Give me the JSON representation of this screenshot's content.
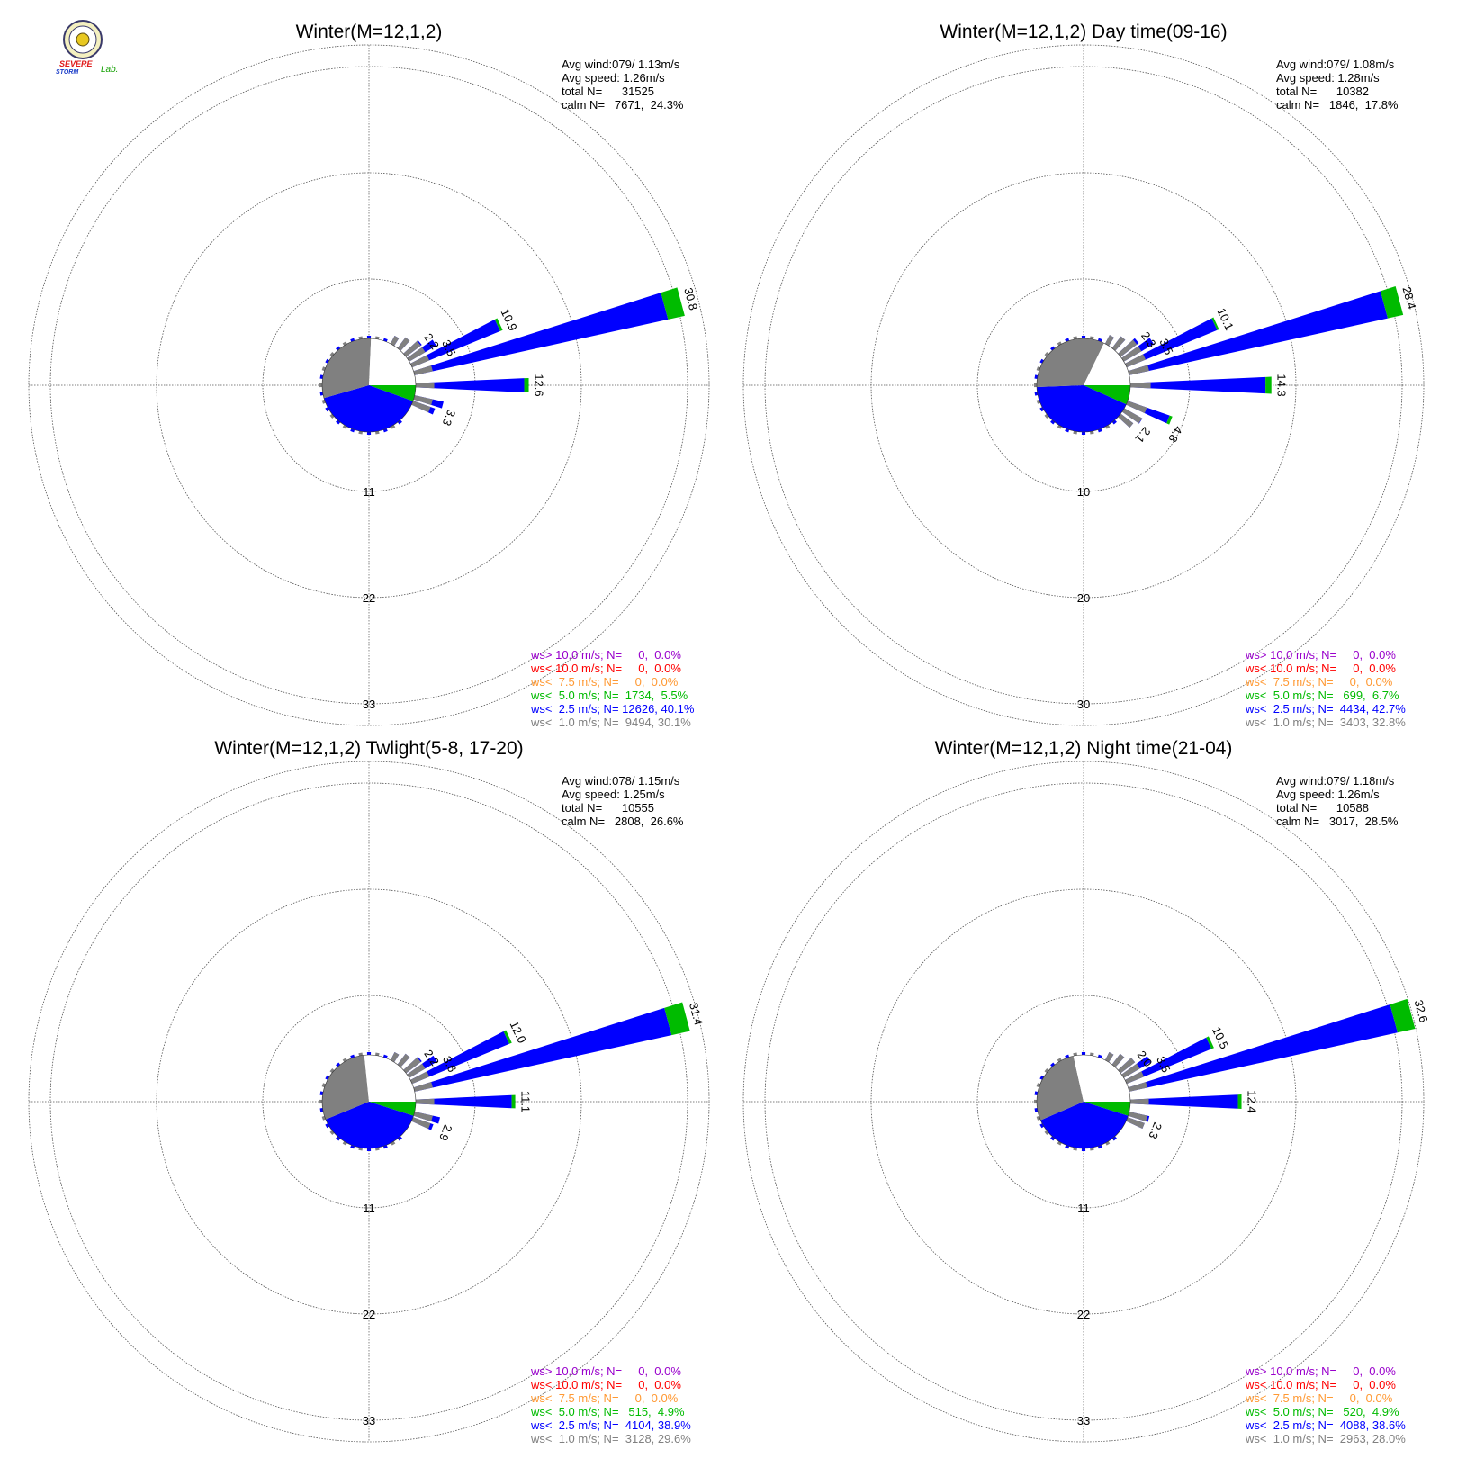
{
  "logo": {
    "word_severe": "SEVERE",
    "word_storm": "STORM",
    "word_lab": "Lab.",
    "colors": {
      "severe": "#e01818",
      "storm": "#1a3cc8",
      "lab": "#12a000",
      "seal_fill": "#f4f0c0",
      "seal_ring": "#3a3a6a"
    }
  },
  "legend_colors": {
    "purple": "#9900cc",
    "red": "#ff0000",
    "orange": "#ff9933",
    "green": "#00bb00",
    "blue": "#0000ff",
    "gray": "#808080",
    "text": "#000000"
  },
  "chart_data": [
    {
      "type": "windrose",
      "title": "Winter(M=12,1,2)",
      "stats": [
        "Avg wind:079/ 1.13m/s",
        "Avg speed: 1.26m/s",
        "total N=      31525",
        "calm N=   7671,  24.3%"
      ],
      "ring_labels": [
        "11",
        "22",
        "33"
      ],
      "r_max": 33,
      "calm_pct": 24.3,
      "sector_pct": {
        "blue": 40.1,
        "green": 5.5,
        "gray": 30.1
      },
      "bar_labels": [
        {
          "text": "2.2",
          "dir": 55,
          "r": 2.2
        },
        {
          "text": "3.5",
          "dir": 65,
          "r": 3.5
        },
        {
          "text": "10.9",
          "dir": 65,
          "r": 10.9
        },
        {
          "text": "30.8",
          "dir": 75,
          "r": 30.8
        },
        {
          "text": "12.6",
          "dir": 90,
          "r": 12.6
        },
        {
          "text": "3.3",
          "dir": 112,
          "r": 3.3
        }
      ],
      "petals": [
        {
          "dir": 75,
          "total": 30.8,
          "green": 1.9
        },
        {
          "dir": 90,
          "total": 12.6,
          "green": 0.5
        },
        {
          "dir": 65,
          "total": 10.9,
          "green": 0.3
        },
        {
          "dir": 57,
          "total": 3.5,
          "green": 0
        },
        {
          "dir": 50,
          "total": 2.2,
          "green": 0
        },
        {
          "dir": 105,
          "total": 3.3,
          "green": 0
        },
        {
          "dir": 112,
          "total": 2.6,
          "green": 0
        },
        {
          "dir": 40,
          "total": 1.5,
          "green": 0
        },
        {
          "dir": 30,
          "total": 1.0,
          "green": 0
        }
      ],
      "legend": [
        {
          "text": "ws> 10.0 m/s; N=     0,  0.0%",
          "color": "purple"
        },
        {
          "text": "ws< 10.0 m/s; N=     0,  0.0%",
          "color": "red"
        },
        {
          "text": "ws<  7.5 m/s; N=     0,  0.0%",
          "color": "orange"
        },
        {
          "text": "ws<  5.0 m/s; N=  1734,  5.5%",
          "color": "green"
        },
        {
          "text": "ws<  2.5 m/s; N= 12626, 40.1%",
          "color": "blue"
        },
        {
          "text": "ws<  1.0 m/s; N=  9494, 30.1%",
          "color": "gray"
        }
      ]
    },
    {
      "type": "windrose",
      "title": "Winter(M=12,1,2) Day time(09-16)",
      "stats": [
        "Avg wind:079/ 1.08m/s",
        "Avg speed: 1.28m/s",
        "total N=      10382",
        "calm N=   1846,  17.8%"
      ],
      "ring_labels": [
        "10",
        "20",
        "30"
      ],
      "r_max": 30,
      "calm_pct": 17.8,
      "sector_pct": {
        "blue": 42.7,
        "green": 6.7,
        "gray": 32.8
      },
      "bar_labels": [
        {
          "text": "2.3",
          "dir": 55,
          "r": 2.3
        },
        {
          "text": "3.5",
          "dir": 65,
          "r": 3.5
        },
        {
          "text": "10.1",
          "dir": 65,
          "r": 10.1
        },
        {
          "text": "28.4",
          "dir": 75,
          "r": 28.4
        },
        {
          "text": "14.3",
          "dir": 90,
          "r": 14.3
        },
        {
          "text": "4.8",
          "dir": 118,
          "r": 4.8
        },
        {
          "text": "2.1",
          "dir": 130,
          "r": 2.1
        }
      ],
      "petals": [
        {
          "dir": 75,
          "total": 28.4,
          "green": 1.6
        },
        {
          "dir": 90,
          "total": 14.3,
          "green": 0.6
        },
        {
          "dir": 65,
          "total": 10.1,
          "green": 0.2
        },
        {
          "dir": 57,
          "total": 3.5,
          "green": 0
        },
        {
          "dir": 50,
          "total": 2.3,
          "green": 0
        },
        {
          "dir": 112,
          "total": 4.8,
          "green": 0.3
        },
        {
          "dir": 122,
          "total": 2.1,
          "green": 0
        },
        {
          "dir": 130,
          "total": 1.6,
          "green": 0
        },
        {
          "dir": 40,
          "total": 1.5,
          "green": 0
        },
        {
          "dir": 30,
          "total": 1.0,
          "green": 0
        }
      ],
      "legend": [
        {
          "text": "ws> 10.0 m/s; N=     0,  0.0%",
          "color": "purple"
        },
        {
          "text": "ws< 10.0 m/s; N=     0,  0.0%",
          "color": "red"
        },
        {
          "text": "ws<  7.5 m/s; N=     0,  0.0%",
          "color": "orange"
        },
        {
          "text": "ws<  5.0 m/s; N=   699,  6.7%",
          "color": "green"
        },
        {
          "text": "ws<  2.5 m/s; N=  4434, 42.7%",
          "color": "blue"
        },
        {
          "text": "ws<  1.0 m/s; N=  3403, 32.8%",
          "color": "gray"
        }
      ]
    },
    {
      "type": "windrose",
      "title": "Winter(M=12,1,2) Twlight(5-8, 17-20)",
      "stats": [
        "Avg wind:078/ 1.15m/s",
        "Avg speed: 1.25m/s",
        "total N=      10555",
        "calm N=   2808,  26.6%"
      ],
      "ring_labels": [
        "11",
        "22",
        "33"
      ],
      "r_max": 33,
      "calm_pct": 26.6,
      "sector_pct": {
        "blue": 38.9,
        "green": 4.9,
        "gray": 29.6
      },
      "bar_labels": [
        {
          "text": "2.2",
          "dir": 55,
          "r": 2.2
        },
        {
          "text": "3.6",
          "dir": 65,
          "r": 3.6
        },
        {
          "text": "12.0",
          "dir": 65,
          "r": 12.0
        },
        {
          "text": "31.4",
          "dir": 75,
          "r": 31.4
        },
        {
          "text": "11.1",
          "dir": 90,
          "r": 11.1
        },
        {
          "text": "2.9",
          "dir": 112,
          "r": 2.9
        }
      ],
      "petals": [
        {
          "dir": 75,
          "total": 31.4,
          "green": 2.1
        },
        {
          "dir": 90,
          "total": 11.1,
          "green": 0.4
        },
        {
          "dir": 65,
          "total": 12.0,
          "green": 0.3
        },
        {
          "dir": 57,
          "total": 3.6,
          "green": 0
        },
        {
          "dir": 50,
          "total": 2.2,
          "green": 0
        },
        {
          "dir": 105,
          "total": 2.9,
          "green": 0
        },
        {
          "dir": 112,
          "total": 2.4,
          "green": 0
        },
        {
          "dir": 40,
          "total": 1.5,
          "green": 0
        },
        {
          "dir": 30,
          "total": 1.0,
          "green": 0
        }
      ],
      "legend": [
        {
          "text": "ws> 10.0 m/s; N=     0,  0.0%",
          "color": "purple"
        },
        {
          "text": "ws< 10.0 m/s; N=     0,  0.0%",
          "color": "red"
        },
        {
          "text": "ws<  7.5 m/s; N=     0,  0.0%",
          "color": "orange"
        },
        {
          "text": "ws<  5.0 m/s; N=   515,  4.9%",
          "color": "green"
        },
        {
          "text": "ws<  2.5 m/s; N=  4104, 38.9%",
          "color": "blue"
        },
        {
          "text": "ws<  1.0 m/s; N=  3128, 29.6%",
          "color": "gray"
        }
      ]
    },
    {
      "type": "windrose",
      "title": "Winter(M=12,1,2) Night time(21-04)",
      "stats": [
        "Avg wind:079/ 1.18m/s",
        "Avg speed: 1.26m/s",
        "total N=      10588",
        "calm N=   3017,  28.5%"
      ],
      "ring_labels": [
        "11",
        "22",
        "33"
      ],
      "r_max": 33,
      "calm_pct": 28.5,
      "sector_pct": {
        "blue": 38.6,
        "green": 4.9,
        "gray": 28.0
      },
      "bar_labels": [
        {
          "text": "2.0",
          "dir": 55,
          "r": 2.0
        },
        {
          "text": "3.5",
          "dir": 65,
          "r": 3.5
        },
        {
          "text": "10.5",
          "dir": 65,
          "r": 10.5
        },
        {
          "text": "32.6",
          "dir": 75,
          "r": 32.6
        },
        {
          "text": "12.4",
          "dir": 90,
          "r": 12.4
        },
        {
          "text": "2.3",
          "dir": 112,
          "r": 2.3
        }
      ],
      "petals": [
        {
          "dir": 75,
          "total": 32.6,
          "green": 2.0
        },
        {
          "dir": 90,
          "total": 12.4,
          "green": 0.4
        },
        {
          "dir": 65,
          "total": 10.5,
          "green": 0.3
        },
        {
          "dir": 57,
          "total": 3.5,
          "green": 0
        },
        {
          "dir": 50,
          "total": 2.0,
          "green": 0
        },
        {
          "dir": 105,
          "total": 2.3,
          "green": 0
        },
        {
          "dir": 112,
          "total": 2.0,
          "green": 0
        },
        {
          "dir": 40,
          "total": 1.5,
          "green": 0
        },
        {
          "dir": 30,
          "total": 1.0,
          "green": 0
        }
      ],
      "legend": [
        {
          "text": "ws> 10.0 m/s; N=     0,  0.0%",
          "color": "purple"
        },
        {
          "text": "ws< 10.0 m/s; N=     0,  0.0%",
          "color": "red"
        },
        {
          "text": "ws<  7.5 m/s; N=     0,  0.0%",
          "color": "orange"
        },
        {
          "text": "ws<  5.0 m/s; N=   520,  4.9%",
          "color": "green"
        },
        {
          "text": "ws<  2.5 m/s; N=  4088, 38.6%",
          "color": "blue"
        },
        {
          "text": "ws<  1.0 m/s; N=  2963, 28.0%",
          "color": "gray"
        }
      ]
    }
  ]
}
